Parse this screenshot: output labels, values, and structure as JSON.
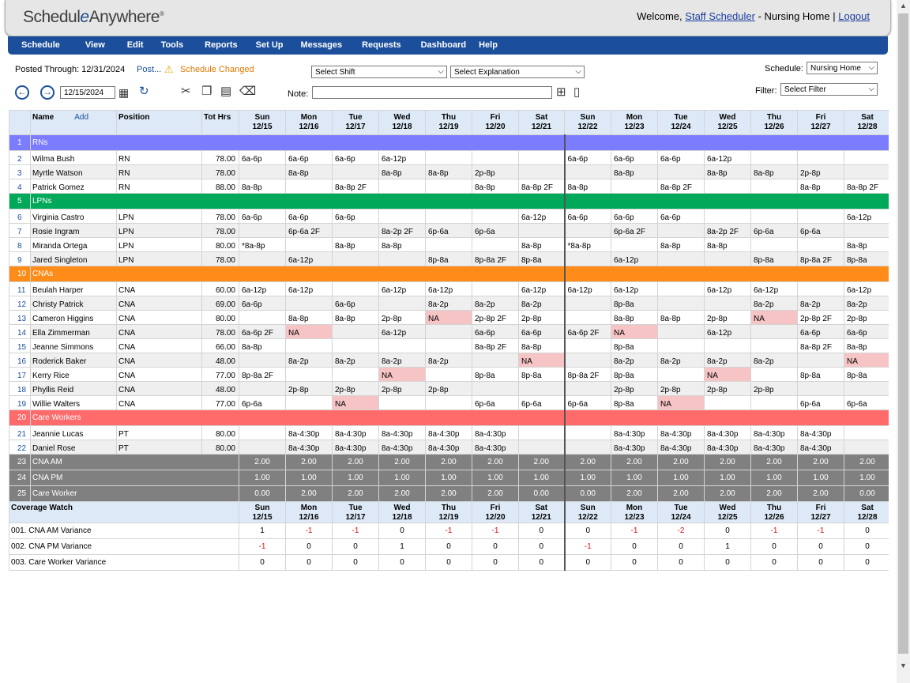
{
  "app": {
    "logo_pre": "Schedul",
    "logo_e": "e",
    "logo_post": "Anywhere",
    "logo_reg": "®"
  },
  "header": {
    "welcome": "Welcome,",
    "user": "Staff Scheduler",
    "org": "- Nursing Home",
    "sep": "|",
    "logout": "Logout"
  },
  "menu": [
    "Schedule",
    "View",
    "Edit",
    "Tools",
    "Reports",
    "Set Up",
    "Messages",
    "Requests",
    "Dashboard",
    "Help"
  ],
  "toolbar": {
    "posted_label": "Posted Through: 12/31/2024",
    "post_link": "Post...",
    "changed": "Schedule Changed",
    "shift_select": "Select Shift",
    "explanation_select": "Select Explanation",
    "schedule_label": "Schedule:",
    "schedule_value": "Nursing Home",
    "filter_label": "Filter:",
    "filter_value": "Select Filter",
    "date": "12/15/2024",
    "note_label": "Note:"
  },
  "colors": {
    "rn": "#7c7cff",
    "lpn": "#00a85a",
    "cna": "#ff8c19",
    "care": "#ff6b6b",
    "menu": "#1b4f9c",
    "na": "#f7c4c6"
  },
  "columns": {
    "name": "Name",
    "add": "Add",
    "position": "Position",
    "tot": "Tot Hrs",
    "days": [
      [
        "Sun",
        "12/15"
      ],
      [
        "Mon",
        "12/16"
      ],
      [
        "Tue",
        "12/17"
      ],
      [
        "Wed",
        "12/18"
      ],
      [
        "Thu",
        "12/19"
      ],
      [
        "Fri",
        "12/20"
      ],
      [
        "Sat",
        "12/21"
      ],
      [
        "Sun",
        "12/22"
      ],
      [
        "Mon",
        "12/23"
      ],
      [
        "Tue",
        "12/24"
      ],
      [
        "Wed",
        "12/25"
      ],
      [
        "Thu",
        "12/26"
      ],
      [
        "Fri",
        "12/27"
      ],
      [
        "Sat",
        "12/28"
      ]
    ]
  },
  "rows": [
    {
      "n": "1",
      "group": "RNs",
      "color": "rn"
    },
    {
      "n": "2",
      "name": "Wilma Bush",
      "pos": "RN",
      "hrs": "78.00",
      "s": [
        "6a-6p",
        "6a-6p",
        "6a-6p",
        "6a-12p",
        "",
        "",
        "",
        "6a-6p",
        "6a-6p",
        "6a-6p",
        "6a-12p",
        "",
        "",
        ""
      ]
    },
    {
      "n": "3",
      "name": "Myrtle Watson",
      "pos": "RN",
      "hrs": "78.00",
      "s": [
        "",
        "8a-8p",
        "",
        "8a-8p",
        "8a-8p",
        "2p-8p",
        "",
        "",
        "8a-8p",
        "",
        "8a-8p",
        "8a-8p",
        "2p-8p",
        ""
      ]
    },
    {
      "n": "4",
      "name": "Patrick Gomez",
      "pos": "RN",
      "hrs": "88.00",
      "s": [
        "8a-8p",
        "",
        "8a-8p 2F",
        "",
        "",
        "8a-8p",
        "8a-8p 2F",
        "8a-8p",
        "",
        "8a-8p 2F",
        "",
        "",
        "8a-8p",
        "8a-8p 2F"
      ]
    },
    {
      "n": "5",
      "group": "LPNs",
      "color": "lpn"
    },
    {
      "n": "6",
      "name": "Virginia Castro",
      "pos": "LPN",
      "hrs": "78.00",
      "s": [
        "6a-6p",
        "6a-6p",
        "6a-6p",
        "",
        "",
        "",
        "6a-12p",
        "6a-6p",
        "6a-6p",
        "6a-6p",
        "",
        "",
        "",
        "6a-12p"
      ]
    },
    {
      "n": "7",
      "name": "Rosie Ingram",
      "pos": "LPN",
      "hrs": "78.00",
      "s": [
        "",
        "6p-6a 2F",
        "",
        "8a-2p 2F",
        "6p-6a",
        "6p-6a",
        "",
        "",
        "6p-6a 2F",
        "",
        "8a-2p 2F",
        "6p-6a",
        "6p-6a",
        ""
      ]
    },
    {
      "n": "8",
      "name": "Miranda Ortega",
      "pos": "LPN",
      "hrs": "80.00",
      "s": [
        "*8a-8p",
        "",
        "8a-8p",
        "8a-8p",
        "",
        "",
        "8a-8p",
        "*8a-8p",
        "",
        "8a-8p",
        "8a-8p",
        "",
        "",
        "8a-8p"
      ]
    },
    {
      "n": "9",
      "name": "Jared Singleton",
      "pos": "LPN",
      "hrs": "78.00",
      "s": [
        "",
        "6a-12p",
        "",
        "",
        "8p-8a",
        "8p-8a 2F",
        "8p-8a",
        "",
        "6a-12p",
        "",
        "",
        "8p-8a",
        "8p-8a 2F",
        "8p-8a"
      ]
    },
    {
      "n": "10",
      "group": "CNAs",
      "color": "cna"
    },
    {
      "n": "11",
      "name": "Beulah Harper",
      "pos": "CNA",
      "hrs": "60.00",
      "s": [
        "6a-12p",
        "6a-12p",
        "",
        "6a-12p",
        "6a-12p",
        "",
        "6a-12p",
        "6a-12p",
        "6a-12p",
        "",
        "6a-12p",
        "6a-12p",
        "",
        "6a-12p"
      ]
    },
    {
      "n": "12",
      "name": "Christy Patrick",
      "pos": "CNA",
      "hrs": "69.00",
      "s": [
        "6a-6p",
        "",
        "6a-6p",
        "",
        "8a-2p",
        "8a-2p",
        "8a-2p",
        "",
        "8p-8a",
        "",
        "",
        "8a-2p",
        "8a-2p",
        "8a-2p"
      ]
    },
    {
      "n": "13",
      "name": "Cameron Higgins",
      "pos": "CNA",
      "hrs": "80.00",
      "s": [
        "",
        "8a-8p",
        "8a-8p",
        "2p-8p",
        "NA",
        "2p-8p 2F",
        "2p-8p",
        "",
        "8a-8p",
        "8a-8p",
        "2p-8p",
        "NA",
        "2p-8p 2F",
        "2p-8p"
      ]
    },
    {
      "n": "14",
      "name": "Ella Zimmerman",
      "pos": "CNA",
      "hrs": "78.00",
      "s": [
        "6a-6p 2F",
        "NA",
        "",
        "6a-12p",
        "",
        "6a-6p",
        "6a-6p",
        "6a-6p 2F",
        "NA",
        "",
        "6a-12p",
        "",
        "6a-6p",
        "6a-6p"
      ]
    },
    {
      "n": "15",
      "name": "Jeanne Simmons",
      "pos": "CNA",
      "hrs": "66.00",
      "s": [
        "8a-8p",
        "",
        "",
        "",
        "",
        "8a-8p 2F",
        "8a-8p",
        "",
        "8p-8a",
        "",
        "",
        "",
        "8a-8p 2F",
        "8a-8p"
      ]
    },
    {
      "n": "16",
      "name": "Roderick Baker",
      "pos": "CNA",
      "hrs": "48.00",
      "s": [
        "",
        "8a-2p",
        "8a-2p",
        "8a-2p",
        "8a-2p",
        "",
        "NA",
        "",
        "8a-2p",
        "8a-2p",
        "8a-2p",
        "8a-2p",
        "",
        "NA"
      ]
    },
    {
      "n": "17",
      "name": "Kerry Rice",
      "pos": "CNA",
      "hrs": "77.00",
      "s": [
        "8p-8a 2F",
        "",
        "",
        "NA",
        "",
        "8p-8a",
        "8p-8a",
        "8p-8a 2F",
        "8p-8a",
        "",
        "NA",
        "",
        "8p-8a",
        "8p-8a"
      ]
    },
    {
      "n": "18",
      "name": "Phyllis Reid",
      "pos": "CNA",
      "hrs": "48.00",
      "s": [
        "",
        "2p-8p",
        "2p-8p",
        "2p-8p",
        "2p-8p",
        "",
        "",
        "",
        "2p-8p",
        "2p-8p",
        "2p-8p",
        "2p-8p",
        "",
        ""
      ]
    },
    {
      "n": "19",
      "name": "Willie Walters",
      "pos": "CNA",
      "hrs": "77.00",
      "s": [
        "6p-6a",
        "",
        "NA",
        "",
        "",
        "6p-6a",
        "6p-6a",
        "6p-6a",
        "8p-8a",
        "NA",
        "",
        "",
        "6p-6a",
        "6p-6a"
      ]
    },
    {
      "n": "20",
      "group": "Care Workers",
      "color": "care"
    },
    {
      "n": "21",
      "name": "Jeannie Lucas",
      "pos": "PT",
      "hrs": "80.00",
      "s": [
        "",
        "8a-4:30p",
        "8a-4:30p",
        "8a-4:30p",
        "8a-4:30p",
        "8a-4:30p",
        "",
        "",
        "8a-4:30p",
        "8a-4:30p",
        "8a-4:30p",
        "8a-4:30p",
        "8a-4:30p",
        ""
      ]
    },
    {
      "n": "22",
      "name": "Daniel Rose",
      "pos": "PT",
      "hrs": "80.00",
      "s": [
        "",
        "8a-4:30p",
        "8a-4:30p",
        "8a-4:30p",
        "8a-4:30p",
        "8a-4:30p",
        "",
        "",
        "8a-4:30p",
        "8a-4:30p",
        "8a-4:30p",
        "8a-4:30p",
        "8a-4:30p",
        ""
      ]
    }
  ],
  "summary": [
    {
      "n": "23",
      "label": "CNA AM",
      "v": [
        "2.00",
        "2.00",
        "2.00",
        "2.00",
        "2.00",
        "2.00",
        "2.00",
        "2.00",
        "2.00",
        "2.00",
        "2.00",
        "2.00",
        "2.00",
        "2.00"
      ]
    },
    {
      "n": "24",
      "label": "CNA PM",
      "v": [
        "1.00",
        "1.00",
        "1.00",
        "1.00",
        "1.00",
        "1.00",
        "1.00",
        "1.00",
        "1.00",
        "1.00",
        "1.00",
        "1.00",
        "1.00",
        "1.00"
      ]
    },
    {
      "n": "25",
      "label": "Care Worker",
      "v": [
        "0.00",
        "2.00",
        "2.00",
        "2.00",
        "2.00",
        "2.00",
        "0.00",
        "0.00",
        "2.00",
        "2.00",
        "2.00",
        "2.00",
        "2.00",
        "0.00"
      ]
    }
  ],
  "coverage": {
    "title": "Coverage Watch",
    "rows": [
      {
        "label": "001. CNA AM Variance",
        "v": [
          "1",
          "-1",
          "-1",
          "0",
          "-1",
          "-1",
          "0",
          "0",
          "-1",
          "-2",
          "0",
          "-1",
          "-1",
          "0"
        ]
      },
      {
        "label": "002. CNA PM Variance",
        "v": [
          "-1",
          "0",
          "0",
          "1",
          "0",
          "0",
          "0",
          "-1",
          "0",
          "0",
          "1",
          "0",
          "0",
          "0"
        ]
      },
      {
        "label": "003. Care Worker Variance",
        "v": [
          "0",
          "0",
          "0",
          "0",
          "0",
          "0",
          "0",
          "0",
          "0",
          "0",
          "0",
          "0",
          "0",
          "0"
        ]
      }
    ]
  }
}
